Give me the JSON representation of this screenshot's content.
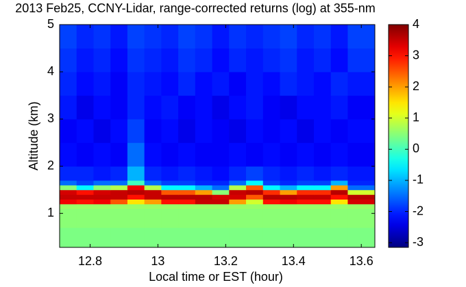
{
  "chart_data": {
    "type": "heatmap",
    "title": "2013 Feb25, CCNY-Lidar, range-corrected returns (log) at 355-nm",
    "x_label": "Local time or EST (hour)",
    "y_label": "Altitude (km)",
    "colormap": "jet",
    "xlim": [
      12.71,
      13.64
    ],
    "ylim": [
      0.28,
      5
    ],
    "xticks": [
      12.8,
      13,
      13.2,
      13.4,
      13.6
    ],
    "yticks": [
      1,
      2,
      3,
      4,
      5
    ],
    "clim": [
      -3.15,
      4
    ],
    "cticks": [
      -3,
      -2,
      -1,
      0,
      1,
      2,
      3,
      4
    ],
    "x_edges": [
      12.71,
      12.76,
      12.81,
      12.86,
      12.91,
      12.96,
      13.01,
      13.06,
      13.11,
      13.16,
      13.21,
      13.26,
      13.31,
      13.36,
      13.41,
      13.46,
      13.51,
      13.56,
      13.64
    ],
    "y_edges": [
      0.28,
      0.7,
      1.1,
      1.2,
      1.3,
      1.4,
      1.5,
      1.6,
      1.7,
      2,
      2.5,
      3,
      3.5,
      4,
      4.5,
      5
    ],
    "z": [
      [
        0.4,
        0.4,
        0.4,
        0.4,
        0.4,
        0.4,
        0.4,
        0.4,
        0.4,
        0.4,
        0.4,
        0.4,
        0.4,
        0.4,
        0.4,
        0.4,
        0.4,
        0.4
      ],
      [
        0.5,
        0.5,
        0.5,
        0.5,
        0.5,
        0.5,
        0.5,
        0.5,
        0.5,
        0.5,
        0.5,
        0.5,
        0.5,
        0.5,
        0.5,
        0.5,
        0.5,
        0.5
      ],
      [
        0.6,
        0.6,
        0.6,
        0.6,
        0.6,
        0.6,
        0.6,
        0.6,
        0.6,
        0.6,
        0.6,
        0.6,
        0.6,
        0.6,
        0.6,
        0.6,
        0.6,
        0.6
      ],
      [
        3.2,
        3,
        3.2,
        2.5,
        1.5,
        2,
        3,
        3,
        3.5,
        3.5,
        2,
        1,
        3,
        3.2,
        3,
        3,
        1.5,
        3.4
      ],
      [
        3.5,
        3.5,
        3.5,
        3.5,
        3,
        3.5,
        3.6,
        3.6,
        3.6,
        3.4,
        3.4,
        2.5,
        3.6,
        3.6,
        3.5,
        3.5,
        3,
        3.6
      ],
      [
        3.4,
        3,
        3.4,
        3.5,
        3.6,
        3.5,
        2.5,
        2.5,
        2,
        0.5,
        3.5,
        3.6,
        2.8,
        2,
        2.8,
        2.8,
        3.6,
        1
      ],
      [
        0.5,
        -0.5,
        0.5,
        0.8,
        3.2,
        0.8,
        -0.5,
        -0.5,
        -1,
        -1.5,
        0.8,
        2.5,
        -0.5,
        -1,
        -0.5,
        -0.5,
        2,
        -1.5
      ],
      [
        -1.5,
        -1.8,
        -1.5,
        -1.5,
        0,
        -1.5,
        -1.8,
        -1.8,
        -2,
        -2,
        -1.5,
        -0.5,
        -1.8,
        -2,
        -1.8,
        -1.8,
        -1,
        -2
      ],
      [
        -2,
        -2,
        -2.1,
        -2,
        -1,
        -2,
        -2.1,
        -2,
        -2.1,
        -2.2,
        -2,
        -1.8,
        -2,
        -2.1,
        -2,
        -2.1,
        -2,
        -2.1
      ],
      [
        -2.2,
        -2.3,
        -2.2,
        -2.3,
        -1.5,
        -2.2,
        -2.3,
        -2.2,
        -2.3,
        -2.3,
        -2.2,
        -2.3,
        -2.2,
        -2.3,
        -2.2,
        -2.3,
        -2.2,
        -2.3
      ],
      [
        -2.3,
        -2.2,
        -2.4,
        -2.2,
        -1.8,
        -2.3,
        -2.2,
        -2.4,
        -2.2,
        -2.3,
        -2.4,
        -2.2,
        -2.3,
        -2.2,
        -2.4,
        -2.2,
        -2.3,
        -2.2
      ],
      [
        -2.1,
        -2.4,
        -2.2,
        -2.3,
        -2,
        -2.2,
        -2.1,
        -2.3,
        -2.2,
        -2.4,
        -2.2,
        -2.1,
        -2.3,
        -2.4,
        -2.2,
        -2.2,
        -2.1,
        -2.3
      ],
      [
        -2,
        -2.2,
        -2.1,
        -2.3,
        -2,
        -2.1,
        -2.2,
        -2,
        -2.2,
        -2.1,
        -2.3,
        -2.1,
        -2.2,
        -2,
        -2.1,
        -2.2,
        -2,
        -2.1
      ],
      [
        -1.9,
        -2.1,
        -2,
        -2.2,
        -1.9,
        -2,
        -2.1,
        -1.9,
        -2,
        -2.2,
        -2,
        -2.1,
        -2,
        -1.9,
        -2.1,
        -2,
        -2.2,
        -1.9
      ],
      [
        -1.8,
        -2,
        -1.9,
        -2.1,
        -1.8,
        -1.9,
        -2,
        -1.8,
        -1.9,
        -2.1,
        -1.9,
        -2,
        -1.9,
        -1.8,
        -2,
        -1.9,
        -2.1,
        -1.8
      ]
    ]
  }
}
